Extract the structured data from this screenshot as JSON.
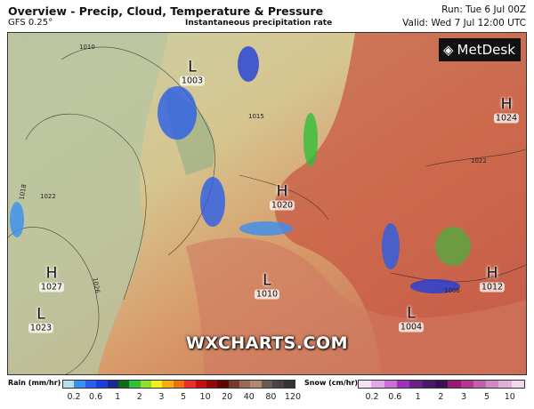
{
  "header": {
    "title": "Overview - Precip, Cloud, Temperature & Pressure",
    "model": "GFS 0.25°",
    "subtitle": "Instantaneous precipitation rate",
    "run": "Run: Tue 6 Jul 00Z",
    "valid": "Valid: Wed 7 Jul 12:00 UTC"
  },
  "logo": {
    "text": "MetDesk"
  },
  "watermark": "WXCHARTS.COM",
  "pressure_centers": [
    {
      "type": "L",
      "value": "1003"
    },
    {
      "type": "H",
      "value": "1024"
    },
    {
      "type": "H",
      "value": "1020"
    },
    {
      "type": "H",
      "value": "1027"
    },
    {
      "type": "L",
      "value": "1010"
    },
    {
      "type": "L",
      "value": "1023"
    },
    {
      "type": "H",
      "value": "1012"
    },
    {
      "type": "L",
      "value": "1004"
    }
  ],
  "isobar_labels": [
    "1010",
    "1015",
    "1022",
    "1018",
    "1026",
    "1022",
    "1006"
  ],
  "legend": {
    "rain_label": "Rain (mm/hr)",
    "rain_ticks": [
      "0.2",
      "0.6",
      "1",
      "2",
      "3",
      "5",
      "10",
      "20",
      "40",
      "80",
      "120"
    ],
    "rain_colors": [
      "#b8e0ea",
      "#3a8ff0",
      "#2a5ee8",
      "#1e3ed8",
      "#1a2a90",
      "#0b6a1a",
      "#2fbf3a",
      "#8fe030",
      "#f0f020",
      "#f4b010",
      "#f07010",
      "#e83030",
      "#c01010",
      "#900808",
      "#600404",
      "#7a3a30",
      "#9a6a58",
      "#b08a70",
      "#6a5a50",
      "#4a4444",
      "#333333"
    ],
    "snow_label": "Snow (cm/hr)",
    "snow_ticks": [
      "0.2",
      "0.6",
      "1",
      "2",
      "3",
      "5",
      "10"
    ],
    "snow_colors": [
      "#f3e3f3",
      "#e0a8e6",
      "#c870d8",
      "#a030c0",
      "#6a208a",
      "#4a1868",
      "#3a1050",
      "#9a1870",
      "#b03890",
      "#c060a8",
      "#d088c0",
      "#e0b0d8",
      "#f0d8ec"
    ]
  }
}
